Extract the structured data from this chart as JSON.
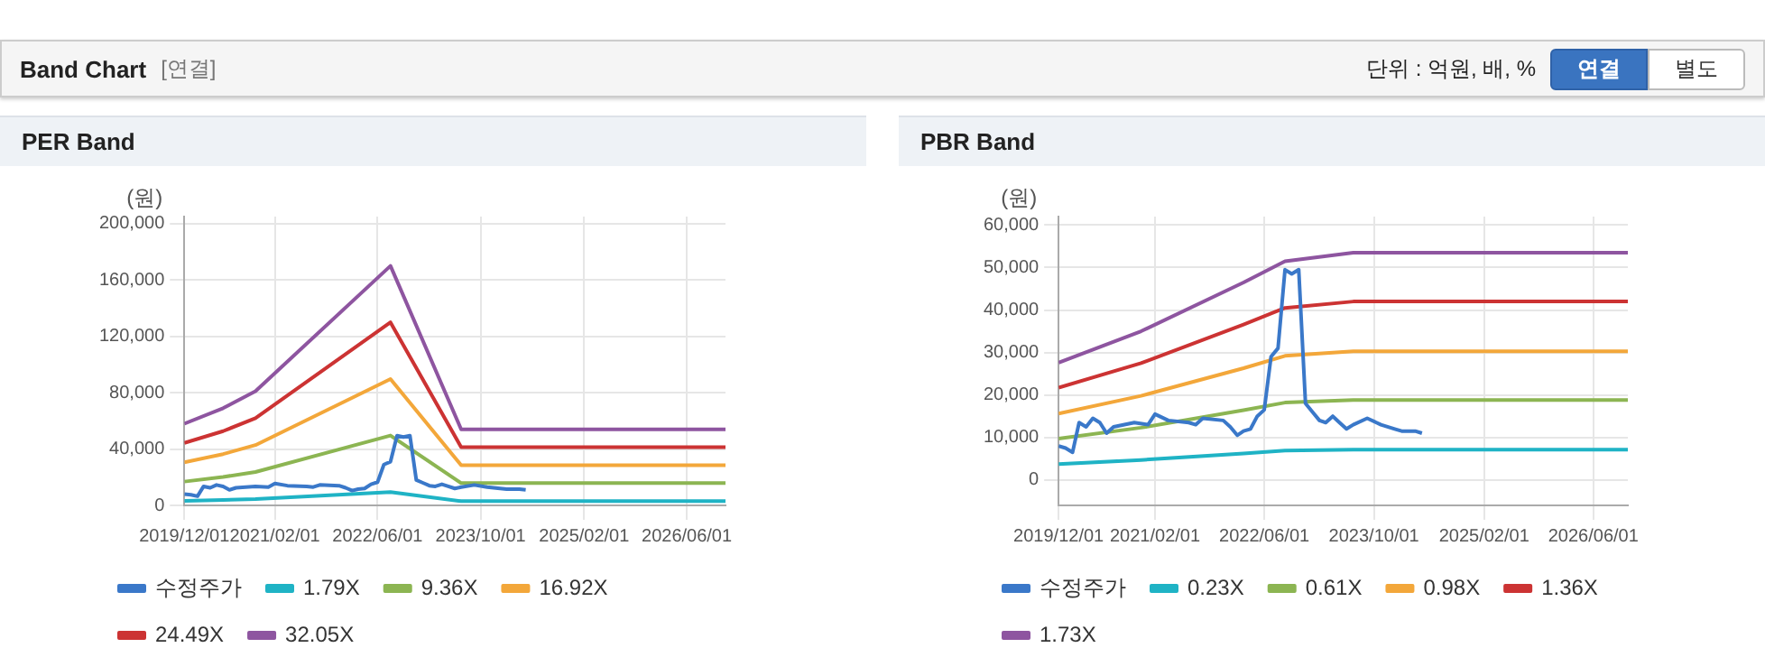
{
  "chart_data": [
    {
      "type": "line",
      "title": "PER Band",
      "ylabel": "(원)",
      "annotations": [
        "Band Chart",
        "[연결]",
        "단위 : 억원, 배, %",
        "연결",
        "별도"
      ],
      "xlim": [
        "2019-12-01",
        "2026-12-01"
      ],
      "xticks": [
        {
          "value": "2019-12-01",
          "label": "2019/12/01"
        },
        {
          "value": "2021-02-01",
          "label": "2021/02/01"
        },
        {
          "value": "2022-06-01",
          "label": "2022/06/01"
        },
        {
          "value": "2023-10-01",
          "label": "2023/10/01"
        },
        {
          "value": "2025-02-01",
          "label": "2025/02/01"
        },
        {
          "value": "2026-06-01",
          "label": "2026/06/01"
        }
      ],
      "ylim": [
        0,
        205000
      ],
      "yticks": [
        {
          "value": 0,
          "label": "0"
        },
        {
          "value": 40000,
          "label": "40,000"
        },
        {
          "value": 80000,
          "label": "80,000"
        },
        {
          "value": 120000,
          "label": "120,000"
        },
        {
          "value": 160000,
          "label": "160,000"
        },
        {
          "value": 200000,
          "label": "200,000"
        }
      ],
      "grid": true,
      "legend": "bottom",
      "marker": "none",
      "series": [
        {
          "name": "수정주가",
          "color": "#3a78c9",
          "x": [
            "2019-12",
            "2020-01",
            "2020-02",
            "2020-03",
            "2020-04",
            "2020-05",
            "2020-06",
            "2020-07",
            "2020-08",
            "2020-11",
            "2021-01",
            "2021-02",
            "2021-04",
            "2021-07",
            "2021-08",
            "2021-09",
            "2021-12",
            "2022-01",
            "2022-02",
            "2022-03",
            "2022-04",
            "2022-05",
            "2022-06",
            "2022-07",
            "2022-08",
            "2022-09",
            "2022-10",
            "2022-11",
            "2022-12",
            "2023-01",
            "2023-02",
            "2023-03",
            "2023-04",
            "2023-05",
            "2023-06",
            "2023-07",
            "2023-09",
            "2023-11",
            "2024-01",
            "2024-02",
            "2024-04",
            "2024-05"
          ],
          "values": [
            8000,
            7500,
            6500,
            13500,
            12500,
            14500,
            13500,
            11000,
            12500,
            13500,
            13000,
            15500,
            14000,
            13500,
            13000,
            14500,
            14000,
            12500,
            10500,
            11500,
            12000,
            15000,
            16500,
            29000,
            31000,
            49500,
            48500,
            49500,
            18000,
            16000,
            14000,
            13500,
            15000,
            13500,
            12000,
            13000,
            14500,
            13000,
            12000,
            11500,
            11500,
            11000
          ]
        },
        {
          "name": "1.79X",
          "color": "#1fb3c5",
          "x": [
            "2019-12",
            "2020-06",
            "2020-11",
            "2022-08",
            "2023-07",
            "2026-12"
          ],
          "values": [
            3200,
            3900,
            4500,
            9500,
            3000,
            3000
          ]
        },
        {
          "name": "9.36X",
          "color": "#8cb552",
          "x": [
            "2019-12",
            "2020-06",
            "2020-11",
            "2022-08",
            "2023-07",
            "2026-12"
          ],
          "values": [
            16900,
            20200,
            23700,
            49600,
            15800,
            15800
          ]
        },
        {
          "name": "16.92X",
          "color": "#f3a73a",
          "x": [
            "2019-12",
            "2020-06",
            "2020-11",
            "2022-08",
            "2023-07",
            "2026-12"
          ],
          "values": [
            30600,
            36400,
            42800,
            89700,
            28500,
            28500
          ]
        },
        {
          "name": "24.49X",
          "color": "#cc3333",
          "x": [
            "2019-12",
            "2020-06",
            "2020-11",
            "2022-08",
            "2023-07",
            "2026-12"
          ],
          "values": [
            44300,
            52700,
            61900,
            129900,
            41300,
            41300
          ]
        },
        {
          "name": "32.05X",
          "color": "#8e55a0",
          "x": [
            "2019-12",
            "2020-06",
            "2020-11",
            "2022-08",
            "2023-07",
            "2026-12"
          ],
          "values": [
            58000,
            69000,
            81000,
            170000,
            54000,
            54000
          ]
        }
      ]
    },
    {
      "type": "line",
      "title": "PBR Band",
      "ylabel": "(원)",
      "xlim": [
        "2019-12-01",
        "2026-11-01"
      ],
      "xticks": [
        {
          "value": "2019-12-01",
          "label": "2019/12/01"
        },
        {
          "value": "2021-02-01",
          "label": "2021/02/01"
        },
        {
          "value": "2022-06-01",
          "label": "2022/06/01"
        },
        {
          "value": "2023-10-01",
          "label": "2023/10/01"
        },
        {
          "value": "2025-02-01",
          "label": "2025/02/01"
        },
        {
          "value": "2026-06-01",
          "label": "2026/06/01"
        }
      ],
      "ylim": [
        -6000,
        62000
      ],
      "yticks": [
        {
          "value": 0,
          "label": "0"
        },
        {
          "value": 10000,
          "label": "10,000"
        },
        {
          "value": 20000,
          "label": "20,000"
        },
        {
          "value": 30000,
          "label": "30,000"
        },
        {
          "value": 40000,
          "label": "40,000"
        },
        {
          "value": 50000,
          "label": "50,000"
        },
        {
          "value": 60000,
          "label": "60,000"
        }
      ],
      "grid": true,
      "legend": "bottom",
      "marker": "none",
      "series": [
        {
          "name": "수정주가",
          "color": "#3a78c9",
          "x": [
            "2019-12",
            "2020-01",
            "2020-02",
            "2020-03",
            "2020-04",
            "2020-05",
            "2020-06",
            "2020-07",
            "2020-08",
            "2020-11",
            "2021-01",
            "2021-02",
            "2021-04",
            "2021-07",
            "2021-08",
            "2021-09",
            "2021-12",
            "2022-01",
            "2022-02",
            "2022-03",
            "2022-04",
            "2022-05",
            "2022-06",
            "2022-07",
            "2022-08",
            "2022-09",
            "2022-10",
            "2022-11",
            "2022-12",
            "2023-01",
            "2023-02",
            "2023-03",
            "2023-04",
            "2023-05",
            "2023-06",
            "2023-07",
            "2023-09",
            "2023-11",
            "2024-01",
            "2024-02",
            "2024-04",
            "2024-05"
          ],
          "values": [
            8000,
            7500,
            6500,
            13500,
            12500,
            14500,
            13500,
            11000,
            12500,
            13500,
            13000,
            15500,
            14000,
            13500,
            13000,
            14500,
            14000,
            12500,
            10500,
            11500,
            12000,
            15000,
            16500,
            29000,
            31000,
            49500,
            48500,
            49500,
            18000,
            16000,
            14000,
            13500,
            15000,
            13500,
            12000,
            13000,
            14500,
            13000,
            12000,
            11500,
            11500,
            11000
          ]
        },
        {
          "name": "0.23X",
          "color": "#1fb3c5",
          "x": [
            "2019-12",
            "2020-12",
            "2022-03",
            "2022-09",
            "2023-07",
            "2026-11"
          ],
          "values": [
            3700,
            4700,
            6200,
            6900,
            7100,
            7100
          ]
        },
        {
          "name": "0.61X",
          "color": "#8cb552",
          "x": [
            "2019-12",
            "2020-12",
            "2022-03",
            "2022-09",
            "2023-07",
            "2026-11"
          ],
          "values": [
            9700,
            12300,
            16400,
            18200,
            18800,
            18800
          ]
        },
        {
          "name": "0.98X",
          "color": "#f3a73a",
          "x": [
            "2019-12",
            "2020-12",
            "2022-03",
            "2022-09",
            "2023-07",
            "2026-11"
          ],
          "values": [
            15600,
            19800,
            26300,
            29200,
            30300,
            30300
          ]
        },
        {
          "name": "1.36X",
          "color": "#cc3333",
          "x": [
            "2019-12",
            "2020-12",
            "2022-03",
            "2022-09",
            "2023-07",
            "2026-11"
          ],
          "values": [
            21700,
            27500,
            36600,
            40500,
            42000,
            42000
          ]
        },
        {
          "name": "1.73X",
          "color": "#8e55a0",
          "x": [
            "2019-12",
            "2020-12",
            "2022-03",
            "2022-09",
            "2023-07",
            "2026-11"
          ],
          "values": [
            27600,
            35000,
            46500,
            51500,
            53500,
            53500
          ]
        }
      ]
    }
  ]
}
